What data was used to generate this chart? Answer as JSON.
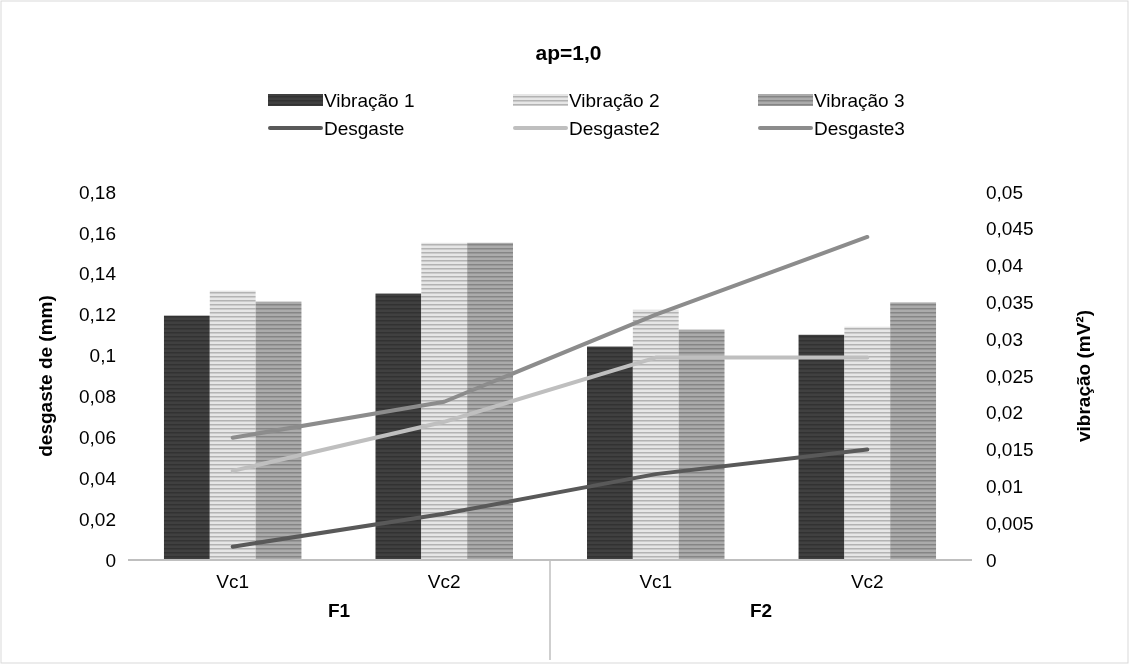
{
  "chart_data": {
    "type": "bar",
    "title": "ap=1,0",
    "ylabel": "desgaste de (mm)",
    "y2label": "vibração (mV²)",
    "categories": [
      "Vc1",
      "Vc2",
      "Vc1",
      "Vc2"
    ],
    "annotations": [
      "F1",
      "F2"
    ],
    "series": [
      {
        "name": "Vibração 1",
        "axis": "y2",
        "color": "#404040",
        "values": [
          0.0332,
          0.0362,
          0.029,
          0.0306
        ]
      },
      {
        "name": "Vibração 2",
        "axis": "y2",
        "color": "#e6e6e6",
        "values": [
          0.0366,
          0.0431,
          0.034,
          0.0317
        ]
      },
      {
        "name": "Vibração 3",
        "axis": "y2",
        "color": "#ababab",
        "values": [
          0.0351,
          0.0431,
          0.0313,
          0.035
        ]
      },
      {
        "name": "Desgaste",
        "type": "line",
        "color": "#595959",
        "values": [
          0.0065,
          0.0226,
          0.042,
          0.054
        ]
      },
      {
        "name": "Desgaste2",
        "type": "line",
        "color": "#bfbfbf",
        "values": [
          0.0436,
          0.0676,
          0.099,
          0.099
        ]
      },
      {
        "name": "Desgaste3",
        "type": "line",
        "color": "#8c8c8c",
        "values": [
          0.0598,
          0.0774,
          0.12,
          0.158
        ]
      }
    ],
    "ylim": [
      0,
      0.18
    ],
    "yticks": [
      0,
      {
        "value": 0.02,
        "label": "0,02"
      },
      {
        "value": 0.04,
        "label": "0,04"
      },
      {
        "value": 0.06,
        "label": "0,06"
      },
      {
        "value": 0.08,
        "label": "0,08"
      },
      {
        "value": 0.1,
        "label": "0,1"
      },
      {
        "value": 0.12,
        "label": "0,12"
      },
      {
        "value": 0.14,
        "label": "0,14"
      },
      {
        "value": 0.16,
        "label": "0,16"
      },
      {
        "value": 0.18,
        "label": "0,18"
      }
    ],
    "y2lim": [
      0,
      0.05
    ],
    "y2ticks": [
      0,
      {
        "value": 0.005,
        "label": "0,005"
      },
      {
        "value": 0.01,
        "label": "0,01"
      },
      {
        "value": 0.015,
        "label": "0,015"
      },
      {
        "value": 0.02,
        "label": "0,02"
      },
      {
        "value": 0.025,
        "label": "0,025"
      },
      {
        "value": 0.03,
        "label": "0,03"
      },
      {
        "value": 0.035,
        "label": "0,035"
      },
      {
        "value": 0.04,
        "label": "0,04"
      },
      {
        "value": 0.045,
        "label": "0,045"
      },
      {
        "value": 0.05,
        "label": "0,05"
      }
    ],
    "legend": "top",
    "grid": false,
    "line_style": "solid",
    "marker": "none"
  }
}
